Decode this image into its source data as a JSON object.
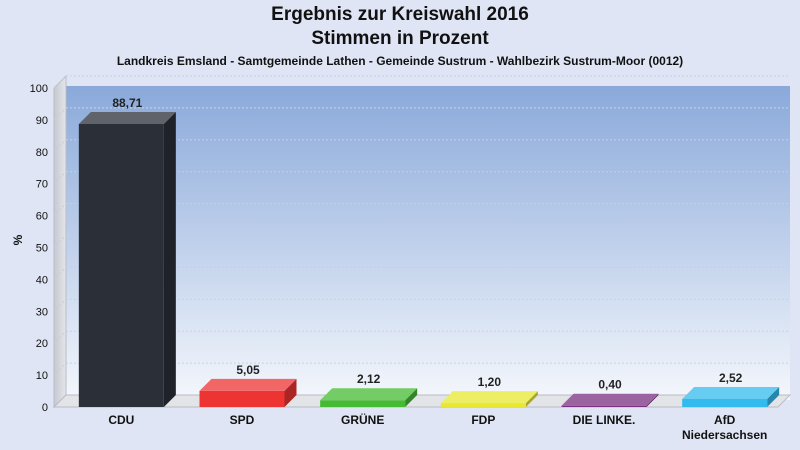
{
  "title_line1": "Ergebnis zur Kreiswahl 2016",
  "title_line2": "Stimmen in Prozent",
  "subtitle": "Landkreis Emsland - Samtgemeinde Lathen - Gemeinde Sustrum - Wahlbezirk Sustrum-Moor (0012)",
  "chart_data": {
    "type": "bar",
    "title": "Ergebnis zur Kreiswahl 2016 Stimmen in Prozent",
    "subtitle": "Landkreis Emsland - Samtgemeinde Lathen - Gemeinde Sustrum - Wahlbezirk Sustrum-Moor (0012)",
    "ylabel": "%",
    "xlabel": "",
    "ylim": [
      0,
      100
    ],
    "yticks": [
      0,
      10,
      20,
      30,
      40,
      50,
      60,
      70,
      80,
      90,
      100
    ],
    "grid": true,
    "legend": "none",
    "categories": [
      "CDU",
      "SPD",
      "GRÜNE",
      "FDP",
      "DIE LINKE.",
      "AfD Niedersachsen"
    ],
    "category_lines": [
      [
        "CDU"
      ],
      [
        "SPD"
      ],
      [
        "GRÜNE"
      ],
      [
        "FDP"
      ],
      [
        "DIE LINKE."
      ],
      [
        "AfD",
        "Niedersachsen"
      ]
    ],
    "values": [
      88.71,
      5.05,
      2.12,
      1.2,
      0.4,
      2.52
    ],
    "value_labels": [
      "88,71",
      "5,05",
      "2,12",
      "1,20",
      "0,40",
      "2,52"
    ],
    "colors": [
      "#2b2f38",
      "#ee3333",
      "#44bb33",
      "#e8e830",
      "#7a2f80",
      "#33bbee"
    ]
  }
}
